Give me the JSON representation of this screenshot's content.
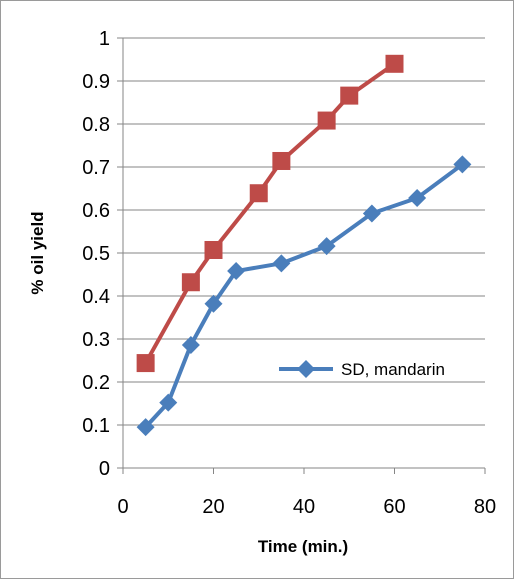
{
  "chart_data": {
    "type": "line",
    "xlabel": "Time (min.)",
    "ylabel": "% oil yield",
    "xlim": [
      0,
      80
    ],
    "ylim": [
      0,
      1
    ],
    "x_ticks": [
      "0",
      "20",
      "40",
      "60",
      "80"
    ],
    "y_ticks": [
      "0",
      "0.1",
      "0.2",
      "0.3",
      "0.4",
      "0.5",
      "0.6",
      "0.7",
      "0.8",
      "0.9",
      "1"
    ],
    "grid": true,
    "legend_position": "right",
    "series": [
      {
        "name": "SD, mandarin",
        "color": "#4a7ebb",
        "marker": "diamond",
        "x": [
          5,
          10,
          15,
          20,
          25,
          35,
          45,
          55,
          65,
          75
        ],
        "y": [
          0.095,
          0.152,
          0.286,
          0.382,
          0.458,
          0.476,
          0.516,
          0.592,
          0.628,
          0.706
        ]
      },
      {
        "color": "#be4b48",
        "marker": "square",
        "x": [
          5,
          15,
          20,
          30,
          35,
          45,
          50,
          60
        ],
        "y": [
          0.244,
          0.432,
          0.507,
          0.639,
          0.714,
          0.808,
          0.866,
          0.94
        ]
      }
    ]
  }
}
